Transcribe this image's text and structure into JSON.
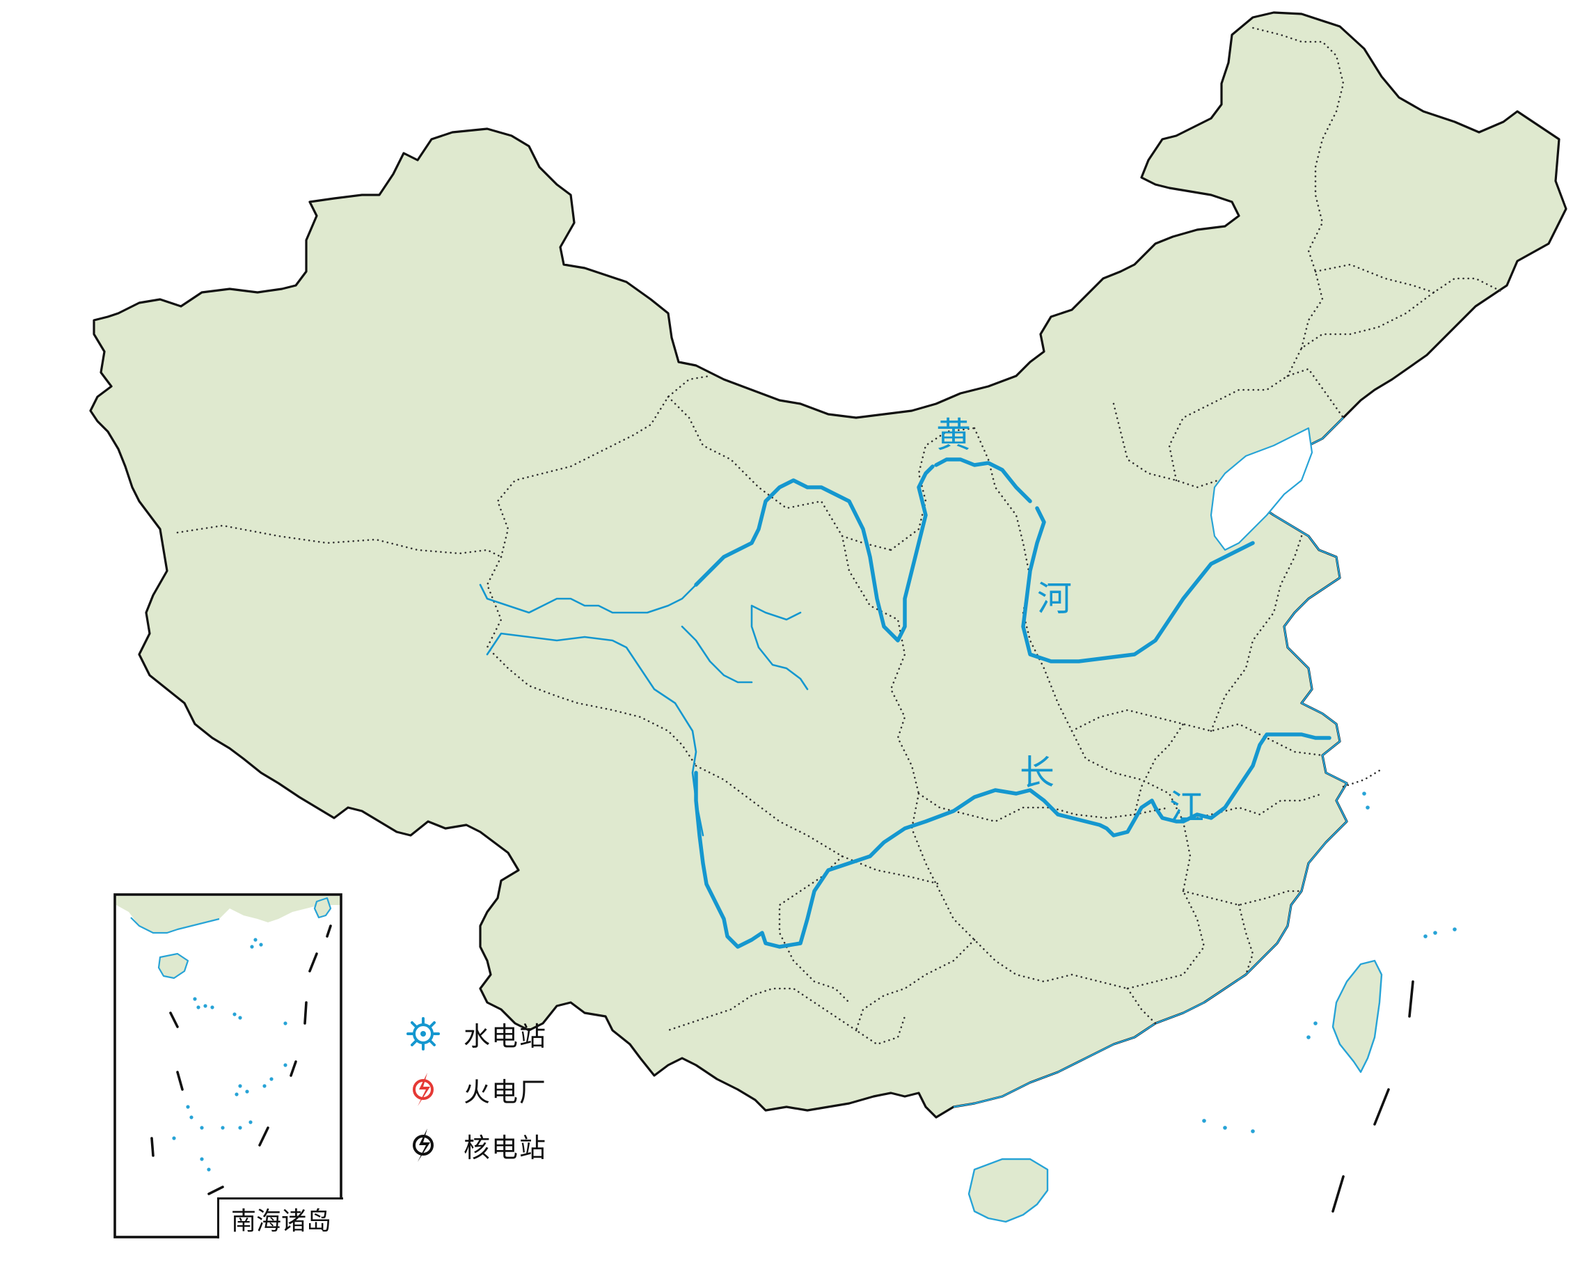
{
  "map": {
    "rivers": {
      "yellow_river_chars": [
        "黄",
        "河"
      ],
      "yangtze_chars": [
        "长",
        "江"
      ]
    },
    "legend": [
      {
        "icon": "hydropower-station-icon",
        "label": "水电站",
        "color": "#1597cf"
      },
      {
        "icon": "thermal-power-plant-icon",
        "label": "火电厂",
        "color": "#e53935"
      },
      {
        "icon": "nuclear-power-station-icon",
        "label": "核电站",
        "color": "#111111"
      }
    ],
    "inset": {
      "label": "南海诸岛"
    },
    "colors": {
      "land": "#dfe9cf",
      "river": "#1597cf",
      "border": "#111111"
    }
  }
}
